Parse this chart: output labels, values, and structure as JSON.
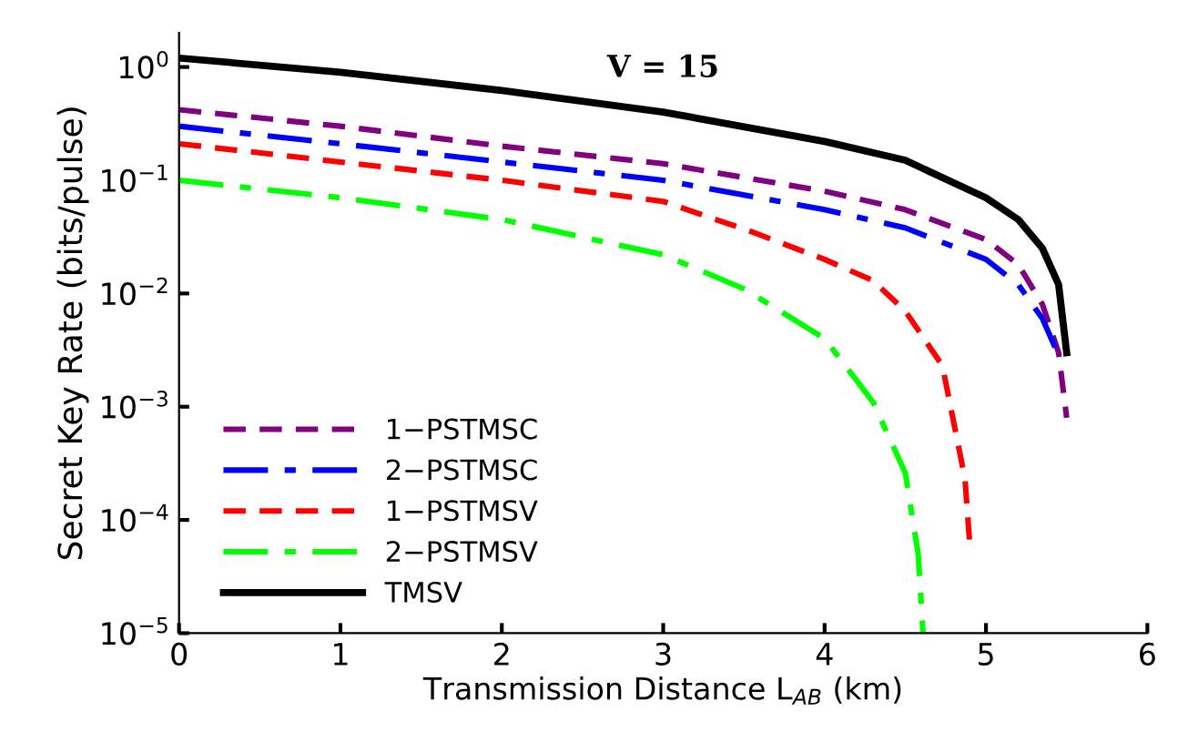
{
  "chart_data": {
    "type": "line",
    "title": "V = 15",
    "xlabel": "Transmission Distance L$_{AB}$ (km)",
    "ylabel": "Secret Key Rate (bits/pulse)",
    "log": "y",
    "xlim": [
      0,
      6
    ],
    "ylim": [
      1e-05,
      2
    ],
    "xticks": [
      0,
      1,
      2,
      3,
      4,
      5,
      6
    ],
    "yticks": [
      {
        "value": 1e-05,
        "label": "10$^{−5}$"
      },
      {
        "value": 0.0001,
        "label": "10$^{−4}$"
      },
      {
        "value": 0.001,
        "label": "10$^{−3}$"
      },
      {
        "value": 0.01,
        "label": "10$^{−2}$"
      },
      {
        "value": 0.1,
        "label": "10$^{−1}$"
      },
      {
        "value": 1,
        "label": "10$^{0}$"
      }
    ],
    "grid": false,
    "legend": "bottom left",
    "marker": "none",
    "series": [
      {
        "name": "1−PSTMSC",
        "color": "#800080",
        "line_style": "dashed",
        "x": [
          0,
          1,
          2,
          3,
          4,
          4.5,
          5,
          5.2,
          5.35,
          5.45,
          5.5
        ],
        "values": [
          0.42,
          0.3,
          0.2,
          0.14,
          0.08,
          0.055,
          0.03,
          0.018,
          0.008,
          0.003,
          0.0008
        ]
      },
      {
        "name": "2−PSTMSC",
        "color": "#0000ff",
        "line_style": "dashdot",
        "x": [
          0,
          1,
          2,
          3,
          4,
          4.5,
          5,
          5.2,
          5.35,
          5.43
        ],
        "values": [
          0.3,
          0.21,
          0.145,
          0.1,
          0.055,
          0.038,
          0.02,
          0.012,
          0.006,
          0.0033
        ]
      },
      {
        "name": "1−PSTMSV",
        "color": "#ff0000",
        "line_style": "dashed",
        "x": [
          0,
          1,
          2,
          3,
          3.55,
          4,
          4.3,
          4.5,
          4.73,
          4.87,
          4.9
        ],
        "values": [
          0.21,
          0.145,
          0.1,
          0.065,
          0.035,
          0.02,
          0.013,
          0.007,
          0.0023,
          0.00023,
          6e-05
        ]
      },
      {
        "name": "2−PSTMSV",
        "color": "#00ff00",
        "line_style": "dashdot",
        "x": [
          0,
          1,
          2,
          3,
          3.5,
          4,
          4.3,
          4.5,
          4.58,
          4.61
        ],
        "values": [
          0.1,
          0.07,
          0.045,
          0.022,
          0.011,
          0.004,
          0.0011,
          0.00026,
          5e-05,
          1e-05
        ]
      },
      {
        "name": "TMSV",
        "color": "#000000",
        "line_style": "solid",
        "x": [
          0,
          1,
          2,
          3,
          4,
          4.5,
          5,
          5.2,
          5.35,
          5.45,
          5.5
        ],
        "values": [
          1.2,
          0.9,
          0.62,
          0.4,
          0.22,
          0.15,
          0.07,
          0.045,
          0.025,
          0.012,
          0.003
        ]
      }
    ]
  }
}
